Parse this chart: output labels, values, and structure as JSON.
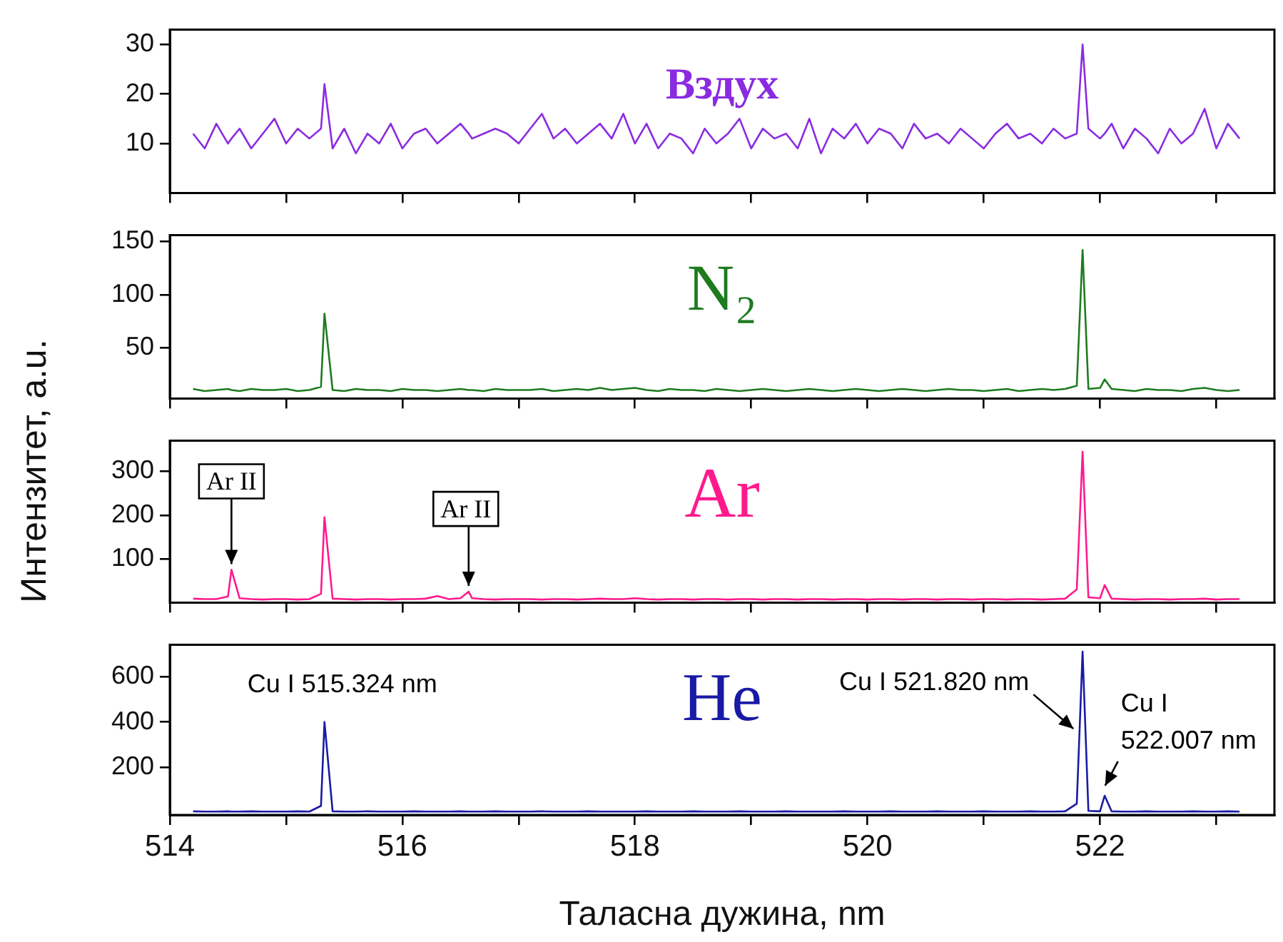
{
  "chart_data": [
    {
      "type": "line",
      "title": "Вздух",
      "ylabel": "Интензитет, a.u.",
      "xlim": [
        514,
        523.5
      ],
      "xticks": [
        514,
        {
          "value": 515,
          "label": null
        },
        516,
        {
          "value": 517,
          "label": null
        },
        518,
        {
          "value": 519,
          "label": null
        },
        520,
        {
          "value": 521,
          "label": null
        },
        522,
        {
          "value": 523,
          "label": null
        }
      ],
      "ylim": [
        0,
        33
      ],
      "yticks": [
        10,
        20,
        30
      ],
      "tick_labels": "y",
      "legend": false,
      "grid": false,
      "marker": "none",
      "line_style": "solid",
      "x": [
        514.2,
        514.3,
        514.4,
        514.5,
        514.53,
        514.6,
        514.7,
        514.8,
        514.9,
        515.0,
        515.1,
        515.2,
        515.3,
        515.33,
        515.4,
        515.5,
        515.6,
        515.7,
        515.8,
        515.9,
        516.0,
        516.1,
        516.2,
        516.3,
        516.4,
        516.5,
        516.57,
        516.6,
        516.7,
        516.8,
        516.9,
        517.0,
        517.1,
        517.2,
        517.3,
        517.4,
        517.5,
        517.6,
        517.7,
        517.8,
        517.9,
        518.0,
        518.1,
        518.2,
        518.3,
        518.4,
        518.5,
        518.6,
        518.7,
        518.8,
        518.9,
        519.0,
        519.1,
        519.2,
        519.3,
        519.4,
        519.5,
        519.6,
        519.7,
        519.8,
        519.9,
        520.0,
        520.1,
        520.2,
        520.3,
        520.4,
        520.5,
        520.6,
        520.7,
        520.8,
        520.9,
        521.0,
        521.1,
        521.2,
        521.3,
        521.4,
        521.5,
        521.6,
        521.7,
        521.8,
        521.85,
        521.9,
        522.0,
        522.04,
        522.1,
        522.2,
        522.3,
        522.4,
        522.5,
        522.6,
        522.7,
        522.8,
        522.9,
        523.0,
        523.1,
        523.2
      ],
      "series": [
        {
          "color": "#8a2be2",
          "values": [
            12,
            9,
            14,
            10,
            11,
            13,
            9,
            12,
            15,
            10,
            13,
            11,
            13,
            22,
            9,
            13,
            8,
            12,
            10,
            14,
            9,
            12,
            13,
            10,
            12,
            14,
            12,
            11,
            12,
            13,
            12,
            10,
            13,
            16,
            11,
            13,
            10,
            12,
            14,
            11,
            16,
            10,
            14,
            9,
            12,
            11,
            8,
            13,
            10,
            12,
            15,
            9,
            13,
            11,
            12,
            9,
            15,
            8,
            13,
            11,
            14,
            10,
            13,
            12,
            9,
            14,
            11,
            12,
            10,
            13,
            11,
            9,
            12,
            14,
            11,
            12,
            10,
            13,
            11,
            12,
            30,
            13,
            11,
            12,
            14,
            9,
            13,
            11,
            8,
            13,
            10,
            12,
            17,
            9,
            14,
            11
          ]
        }
      ]
    },
    {
      "type": "line",
      "title": "N₂",
      "xlim": [
        514,
        523.5
      ],
      "xticks": [
        514,
        {
          "value": 515,
          "label": null
        },
        516,
        {
          "value": 517,
          "label": null
        },
        518,
        {
          "value": 519,
          "label": null
        },
        520,
        {
          "value": 521,
          "label": null
        },
        522,
        {
          "value": 523,
          "label": null
        }
      ],
      "ylim": [
        2,
        156
      ],
      "yticks": [
        50,
        100,
        150
      ],
      "tick_labels": "y",
      "legend": false,
      "grid": false,
      "marker": "none",
      "line_style": "solid",
      "x": [
        514.2,
        514.3,
        514.4,
        514.5,
        514.53,
        514.6,
        514.7,
        514.8,
        514.9,
        515.0,
        515.1,
        515.2,
        515.3,
        515.33,
        515.4,
        515.5,
        515.6,
        515.7,
        515.8,
        515.9,
        516.0,
        516.1,
        516.2,
        516.3,
        516.4,
        516.5,
        516.57,
        516.6,
        516.7,
        516.8,
        516.9,
        517.0,
        517.1,
        517.2,
        517.3,
        517.4,
        517.5,
        517.6,
        517.7,
        517.8,
        517.9,
        518.0,
        518.1,
        518.2,
        518.3,
        518.4,
        518.5,
        518.6,
        518.7,
        518.8,
        518.9,
        519.0,
        519.1,
        519.2,
        519.3,
        519.4,
        519.5,
        519.6,
        519.7,
        519.8,
        519.9,
        520.0,
        520.1,
        520.2,
        520.3,
        520.4,
        520.5,
        520.6,
        520.7,
        520.8,
        520.9,
        521.0,
        521.1,
        521.2,
        521.3,
        521.4,
        521.5,
        521.6,
        521.7,
        521.8,
        521.85,
        521.9,
        522.0,
        522.04,
        522.1,
        522.2,
        522.3,
        522.4,
        522.5,
        522.6,
        522.7,
        522.8,
        522.9,
        523.0,
        523.1,
        523.2
      ],
      "series": [
        {
          "color": "#1e7b1e",
          "values": [
            11,
            9,
            10,
            11,
            10,
            9,
            11,
            10,
            10,
            11,
            9,
            10,
            13,
            82,
            10,
            9,
            11,
            10,
            10,
            9,
            11,
            10,
            10,
            9,
            10,
            11,
            10,
            10,
            9,
            11,
            10,
            10,
            10,
            11,
            9,
            10,
            11,
            10,
            12,
            10,
            11,
            12,
            10,
            9,
            11,
            10,
            10,
            9,
            11,
            10,
            9,
            10,
            11,
            10,
            9,
            10,
            11,
            10,
            9,
            10,
            11,
            10,
            9,
            10,
            11,
            10,
            9,
            10,
            11,
            10,
            10,
            9,
            10,
            11,
            9,
            10,
            11,
            10,
            11,
            14,
            142,
            11,
            12,
            20,
            11,
            10,
            9,
            11,
            10,
            10,
            9,
            11,
            12,
            10,
            9,
            10
          ]
        }
      ]
    },
    {
      "type": "line",
      "title": "Ar",
      "xlim": [
        514,
        523.5
      ],
      "xticks": [
        514,
        {
          "value": 515,
          "label": null
        },
        516,
        {
          "value": 517,
          "label": null
        },
        518,
        {
          "value": 519,
          "label": null
        },
        520,
        {
          "value": 521,
          "label": null
        },
        522,
        {
          "value": 523,
          "label": null
        }
      ],
      "ylim": [
        0,
        370
      ],
      "yticks": [
        100,
        200,
        300
      ],
      "tick_labels": "y",
      "legend": false,
      "grid": false,
      "marker": "none",
      "line_style": "solid",
      "annotations": [
        {
          "text": "Ar II",
          "x": 514.53,
          "y": 75
        },
        {
          "text": "Ar II",
          "x": 516.57,
          "y": 25
        }
      ],
      "x": [
        514.2,
        514.3,
        514.4,
        514.5,
        514.53,
        514.6,
        514.7,
        514.8,
        514.9,
        515.0,
        515.1,
        515.2,
        515.3,
        515.33,
        515.4,
        515.5,
        515.6,
        515.7,
        515.8,
        515.9,
        516.0,
        516.1,
        516.2,
        516.3,
        516.4,
        516.5,
        516.57,
        516.6,
        516.7,
        516.8,
        516.9,
        517.0,
        517.1,
        517.2,
        517.3,
        517.4,
        517.5,
        517.6,
        517.7,
        517.8,
        517.9,
        518.0,
        518.1,
        518.2,
        518.3,
        518.4,
        518.5,
        518.6,
        518.7,
        518.8,
        518.9,
        519.0,
        519.1,
        519.2,
        519.3,
        519.4,
        519.5,
        519.6,
        519.7,
        519.8,
        519.9,
        520.0,
        520.1,
        520.2,
        520.3,
        520.4,
        520.5,
        520.6,
        520.7,
        520.8,
        520.9,
        521.0,
        521.1,
        521.2,
        521.3,
        521.4,
        521.5,
        521.6,
        521.7,
        521.8,
        521.85,
        521.9,
        522.0,
        522.04,
        522.1,
        522.2,
        522.3,
        522.4,
        522.5,
        522.6,
        522.7,
        522.8,
        522.9,
        523.0,
        523.1,
        523.2
      ],
      "series": [
        {
          "color": "#ff1a8c",
          "values": [
            9,
            8,
            8,
            14,
            75,
            10,
            8,
            7,
            8,
            8,
            7,
            8,
            20,
            195,
            9,
            8,
            7,
            8,
            8,
            7,
            8,
            8,
            9,
            15,
            8,
            10,
            25,
            10,
            8,
            7,
            8,
            8,
            8,
            7,
            8,
            8,
            7,
            8,
            9,
            8,
            8,
            10,
            8,
            7,
            8,
            8,
            7,
            8,
            8,
            7,
            8,
            8,
            7,
            8,
            8,
            7,
            8,
            8,
            7,
            8,
            8,
            7,
            8,
            8,
            7,
            8,
            8,
            7,
            8,
            8,
            7,
            8,
            8,
            7,
            8,
            8,
            7,
            8,
            9,
            30,
            345,
            12,
            10,
            40,
            9,
            8,
            7,
            8,
            8,
            7,
            8,
            8,
            9,
            7,
            8,
            8
          ]
        }
      ]
    },
    {
      "type": "line",
      "title": "He",
      "xlabel": "Таласна дужина, nm",
      "xlim": [
        514,
        523.5
      ],
      "xticks": [
        514,
        {
          "value": 515,
          "label": null
        },
        516,
        {
          "value": 517,
          "label": null
        },
        518,
        {
          "value": 519,
          "label": null
        },
        520,
        {
          "value": 521,
          "label": null
        },
        522,
        {
          "value": 523,
          "label": null
        }
      ],
      "ylim": [
        -10,
        740
      ],
      "yticks": [
        200,
        400,
        600
      ],
      "legend": false,
      "grid": false,
      "marker": "none",
      "line_style": "solid",
      "annotations": [
        {
          "text": "Cu I 515.324 nm",
          "x": 515.324,
          "y": 400
        },
        {
          "text": "Cu I 521.820 nm",
          "x": 521.82,
          "y": 710
        },
        {
          "text": "Cu I\n522.007 nm",
          "x": 522.007,
          "y": 75
        }
      ],
      "x": [
        514.2,
        514.3,
        514.4,
        514.5,
        514.53,
        514.6,
        514.7,
        514.8,
        514.9,
        515.0,
        515.1,
        515.2,
        515.3,
        515.33,
        515.4,
        515.5,
        515.6,
        515.7,
        515.8,
        515.9,
        516.0,
        516.1,
        516.2,
        516.3,
        516.4,
        516.5,
        516.57,
        516.6,
        516.7,
        516.8,
        516.9,
        517.0,
        517.1,
        517.2,
        517.3,
        517.4,
        517.5,
        517.6,
        517.7,
        517.8,
        517.9,
        518.0,
        518.1,
        518.2,
        518.3,
        518.4,
        518.5,
        518.6,
        518.7,
        518.8,
        518.9,
        519.0,
        519.1,
        519.2,
        519.3,
        519.4,
        519.5,
        519.6,
        519.7,
        519.8,
        519.9,
        520.0,
        520.1,
        520.2,
        520.3,
        520.4,
        520.5,
        520.6,
        520.7,
        520.8,
        520.9,
        521.0,
        521.1,
        521.2,
        521.3,
        521.4,
        521.5,
        521.6,
        521.7,
        521.8,
        521.85,
        521.9,
        522.0,
        522.04,
        522.1,
        522.2,
        522.3,
        522.4,
        522.5,
        522.6,
        522.7,
        522.8,
        522.9,
        523.0,
        523.1,
        523.2
      ],
      "series": [
        {
          "color": "#1a1aa6",
          "values": [
            6,
            5,
            5,
            6,
            5,
            5,
            6,
            5,
            5,
            5,
            6,
            5,
            30,
            400,
            6,
            5,
            5,
            6,
            5,
            5,
            5,
            6,
            5,
            5,
            5,
            6,
            5,
            5,
            5,
            6,
            5,
            5,
            5,
            6,
            5,
            5,
            5,
            6,
            5,
            5,
            5,
            5,
            6,
            5,
            5,
            5,
            6,
            5,
            5,
            5,
            6,
            5,
            5,
            5,
            6,
            5,
            5,
            5,
            5,
            6,
            5,
            5,
            5,
            6,
            5,
            5,
            5,
            6,
            5,
            5,
            5,
            6,
            5,
            5,
            5,
            6,
            5,
            5,
            6,
            40,
            710,
            8,
            6,
            75,
            6,
            5,
            5,
            6,
            5,
            5,
            5,
            6,
            5,
            5,
            6,
            5
          ]
        }
      ]
    }
  ]
}
